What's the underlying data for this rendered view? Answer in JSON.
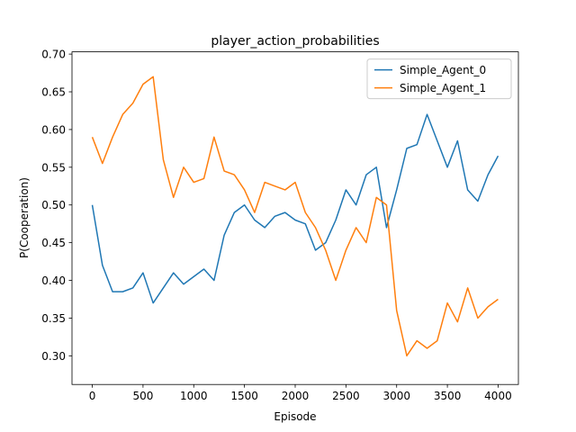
{
  "chart_data": {
    "type": "line",
    "title": "player_action_probabilities",
    "xlabel": "Episode",
    "ylabel": "P(Cooperation)",
    "x": [
      0,
      100,
      200,
      300,
      400,
      500,
      600,
      700,
      800,
      900,
      1000,
      1100,
      1200,
      1300,
      1400,
      1500,
      1600,
      1700,
      1800,
      1900,
      2000,
      2100,
      2200,
      2300,
      2400,
      2500,
      2600,
      2700,
      2800,
      2900,
      3000,
      3100,
      3200,
      3300,
      3400,
      3500,
      3600,
      3700,
      3800,
      3900,
      4000
    ],
    "series": [
      {
        "name": "Simple_Agent_0",
        "color": "#1f77b4",
        "values": [
          0.5,
          0.42,
          0.385,
          0.385,
          0.39,
          0.41,
          0.37,
          0.39,
          0.41,
          0.395,
          0.405,
          0.415,
          0.4,
          0.46,
          0.49,
          0.5,
          0.48,
          0.47,
          0.485,
          0.49,
          0.48,
          0.475,
          0.44,
          0.45,
          0.48,
          0.52,
          0.5,
          0.54,
          0.55,
          0.47,
          0.52,
          0.575,
          0.58,
          0.62,
          0.585,
          0.55,
          0.585,
          0.52,
          0.505,
          0.54,
          0.565
        ]
      },
      {
        "name": "Simple_Agent_1",
        "color": "#ff7f0e",
        "values": [
          0.59,
          0.555,
          0.59,
          0.62,
          0.635,
          0.66,
          0.67,
          0.56,
          0.51,
          0.55,
          0.53,
          0.535,
          0.59,
          0.545,
          0.54,
          0.52,
          0.49,
          0.53,
          0.525,
          0.52,
          0.53,
          0.49,
          0.47,
          0.44,
          0.4,
          0.44,
          0.47,
          0.45,
          0.51,
          0.5,
          0.36,
          0.3,
          0.32,
          0.31,
          0.32,
          0.37,
          0.345,
          0.39,
          0.35,
          0.365,
          0.375
        ]
      }
    ],
    "xlim": [
      -200,
      4200
    ],
    "ylim": [
      0.262,
      0.703
    ],
    "xticks": [
      0,
      500,
      1000,
      1500,
      2000,
      2500,
      3000,
      3500,
      4000
    ],
    "yticks": [
      {
        "value": 0.3,
        "label": "0.30"
      },
      0.35,
      {
        "value": 0.4,
        "label": "0.40"
      },
      0.45,
      {
        "value": 0.5,
        "label": "0.50"
      },
      0.55,
      {
        "value": 0.6,
        "label": "0.60"
      },
      0.65,
      {
        "value": 0.7,
        "label": "0.70"
      }
    ],
    "legend": "upper right"
  }
}
